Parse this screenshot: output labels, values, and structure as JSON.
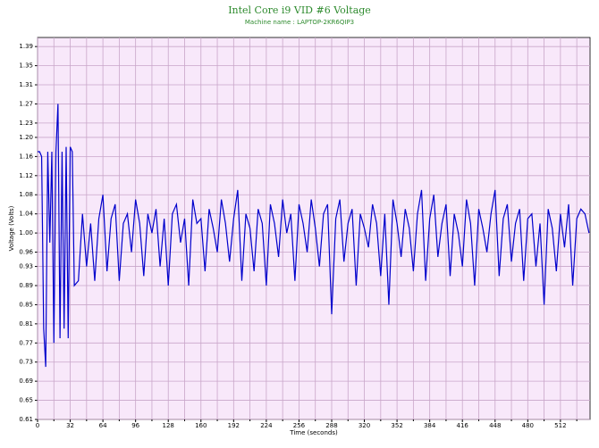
{
  "chart_data": {
    "type": "line",
    "title": "Intel Core i9 VID #6 Voltage",
    "subtitle": "Machine name : LAPTOP-2KR6QIP3",
    "x_label": "Time (seconds)",
    "y_label": "Voltage (Volts)",
    "xlim": [
      0,
      541
    ],
    "xticks": [
      0,
      32,
      64,
      96,
      128,
      160,
      192,
      224,
      256,
      288,
      320,
      352,
      384,
      416,
      448,
      480,
      512
    ],
    "xminor_ticks": [
      16,
      48,
      80,
      112,
      144,
      176,
      208,
      240,
      272,
      304,
      336,
      368,
      400,
      432,
      464,
      496,
      528
    ],
    "ylim": [
      0.61,
      1.409
    ],
    "yticks": [
      0.61,
      0.65,
      0.69,
      0.73,
      0.77,
      0.81,
      0.85,
      0.89,
      0.93,
      0.96,
      {
        "value": 1,
        "label": "1.00"
      },
      1.04,
      1.08,
      1.12,
      1.16,
      {
        "value": 1.2,
        "label": "1.20"
      },
      1.23,
      1.27,
      1.31,
      1.35,
      1.39
    ],
    "grid": true,
    "series": [
      {
        "color": "#0000cc",
        "x": [
          0,
          2,
          4,
          6,
          8,
          10,
          12,
          14,
          16,
          18,
          20,
          22,
          24,
          26,
          28,
          30,
          32,
          34,
          36,
          40,
          44,
          48,
          52,
          56,
          60,
          64,
          68,
          72,
          76,
          80,
          84,
          88,
          92,
          96,
          100,
          104,
          108,
          112,
          116,
          120,
          124,
          128,
          132,
          136,
          140,
          144,
          148,
          152,
          156,
          160,
          164,
          168,
          172,
          176,
          180,
          184,
          188,
          192,
          196,
          200,
          204,
          208,
          212,
          216,
          220,
          224,
          228,
          232,
          236,
          240,
          244,
          248,
          252,
          256,
          260,
          264,
          268,
          272,
          276,
          280,
          284,
          288,
          292,
          296,
          300,
          304,
          308,
          312,
          316,
          320,
          324,
          328,
          332,
          336,
          340,
          344,
          348,
          352,
          356,
          360,
          364,
          368,
          372,
          376,
          380,
          384,
          388,
          392,
          396,
          400,
          404,
          408,
          412,
          416,
          420,
          424,
          428,
          432,
          436,
          440,
          444,
          448,
          452,
          456,
          460,
          464,
          468,
          472,
          476,
          480,
          484,
          488,
          492,
          496,
          500,
          504,
          508,
          512,
          516,
          520,
          524,
          528,
          532,
          536,
          540
        ],
        "values": [
          1.17,
          1.17,
          1.16,
          0.8,
          0.72,
          1.17,
          0.98,
          1.17,
          0.77,
          1.17,
          1.27,
          0.78,
          1.17,
          0.8,
          1.18,
          0.78,
          1.18,
          1.17,
          0.89,
          0.9,
          1.04,
          0.93,
          1.02,
          0.9,
          1.03,
          1.08,
          0.92,
          1.03,
          1.06,
          0.9,
          1.02,
          1.04,
          0.96,
          1.07,
          1.02,
          0.91,
          1.04,
          1.0,
          1.05,
          0.93,
          1.03,
          0.89,
          1.04,
          1.06,
          0.98,
          1.03,
          0.89,
          1.07,
          1.02,
          1.03,
          0.92,
          1.05,
          1.01,
          0.96,
          1.07,
          1.02,
          0.94,
          1.03,
          1.09,
          0.9,
          1.04,
          1.01,
          0.92,
          1.05,
          1.02,
          0.89,
          1.06,
          1.02,
          0.95,
          1.07,
          1.0,
          1.04,
          0.9,
          1.06,
          1.02,
          0.96,
          1.07,
          1.01,
          0.93,
          1.04,
          1.06,
          0.83,
          1.03,
          1.07,
          0.94,
          1.02,
          1.05,
          0.89,
          1.04,
          1.01,
          0.97,
          1.06,
          1.02,
          0.91,
          1.04,
          0.85,
          1.07,
          1.02,
          0.95,
          1.05,
          1.01,
          0.92,
          1.04,
          1.09,
          0.9,
          1.03,
          1.08,
          0.95,
          1.02,
          1.06,
          0.91,
          1.04,
          1.0,
          0.93,
          1.07,
          1.02,
          0.89,
          1.05,
          1.01,
          0.96,
          1.04,
          1.09,
          0.91,
          1.03,
          1.06,
          0.94,
          1.02,
          1.05,
          0.9,
          1.03,
          1.04,
          0.93,
          1.02,
          0.85,
          1.05,
          1.01,
          0.92,
          1.04,
          0.97,
          1.06,
          0.89,
          1.03,
          1.05,
          1.04,
          1.0
        ]
      }
    ]
  }
}
